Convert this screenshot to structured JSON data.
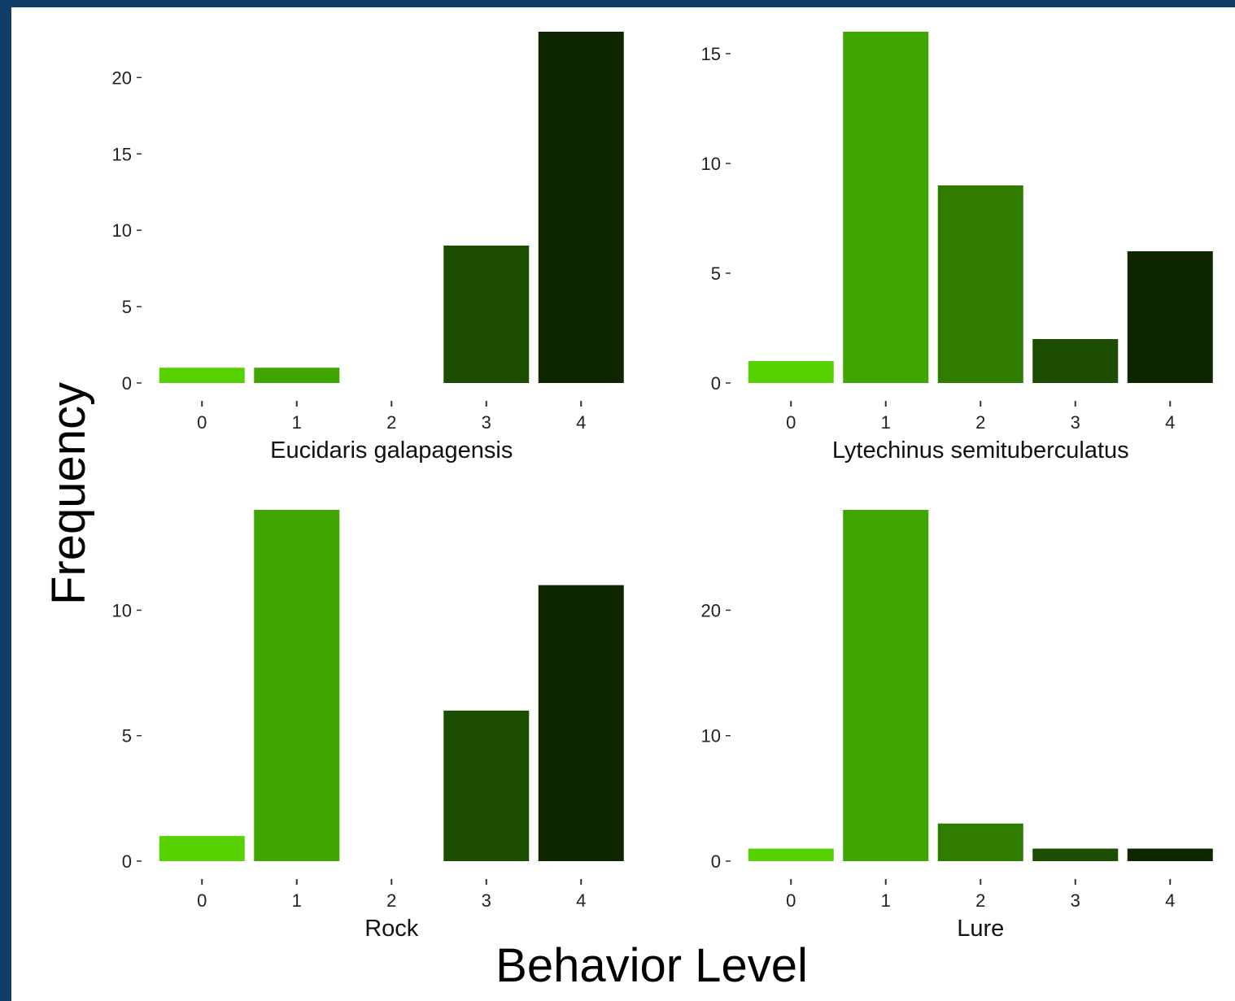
{
  "figure": {
    "ylabel": "Frequency",
    "xlabel": "Behavior Level"
  },
  "colors": {
    "background": "#0f3e66",
    "levels": [
      "#55d200",
      "#3fa500",
      "#2f7c00",
      "#1d4d00",
      "#0f2700"
    ],
    "text": "#222222"
  },
  "chart_data": [
    {
      "type": "bar",
      "xlabel": "Eucidaris galapagensis",
      "categories": [
        "0",
        "1",
        "2",
        "3",
        "4"
      ],
      "values": [
        1,
        1,
        0,
        9,
        23
      ],
      "ylim": [
        0,
        23
      ],
      "yticks": [
        0,
        5,
        10,
        15,
        20
      ],
      "grid": false
    },
    {
      "type": "bar",
      "xlabel": "Lytechinus semituberculatus",
      "categories": [
        "0",
        "1",
        "2",
        "3",
        "4"
      ],
      "values": [
        1,
        16,
        9,
        2,
        6
      ],
      "ylim": [
        0,
        16
      ],
      "yticks": [
        0,
        5,
        10,
        15
      ],
      "grid": false
    },
    {
      "type": "bar",
      "xlabel": "Rock",
      "categories": [
        "0",
        "1",
        "2",
        "3",
        "4"
      ],
      "values": [
        1,
        14,
        0,
        6,
        11
      ],
      "ylim": [
        0,
        14
      ],
      "yticks": [
        0,
        5,
        10
      ],
      "grid": false
    },
    {
      "type": "bar",
      "xlabel": "Lure",
      "categories": [
        "0",
        "1",
        "2",
        "3",
        "4"
      ],
      "values": [
        1,
        28,
        3,
        1,
        1
      ],
      "ylim": [
        0,
        28
      ],
      "yticks": [
        0,
        10,
        20
      ],
      "grid": false
    }
  ]
}
